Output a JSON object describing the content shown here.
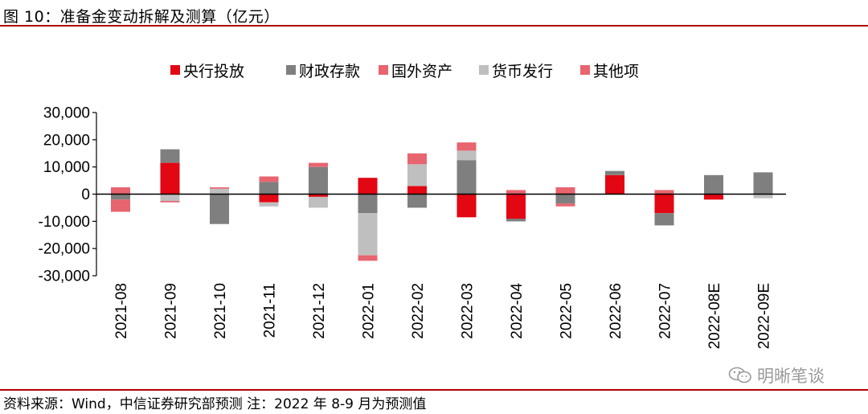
{
  "header": {
    "title": "图 10：准备金变动拆解及测算（亿元）"
  },
  "footer": {
    "source": "资料来源：Wind，中信证券研究部预测 注：2022 年 8-9 月为预测值"
  },
  "watermark": {
    "text": "明晰笔谈",
    "icon": "wechat-icon"
  },
  "colors": {
    "rule": "#b00000",
    "axis": "#000000"
  },
  "chart_data": {
    "type": "bar",
    "stacked": true,
    "categories": [
      "2021-08",
      "2021-09",
      "2021-10",
      "2021-11",
      "2021-12",
      "2022-01",
      "2022-02",
      "2022-03",
      "2022-04",
      "2022-05",
      "2022-06",
      "2022-07",
      "2022-08E",
      "2022-09E"
    ],
    "ylim": [
      -30000,
      30000
    ],
    "yticks": [
      -30000,
      -20000,
      -10000,
      0,
      10000,
      20000,
      30000
    ],
    "ytick_labels": [
      "-30,000",
      "-20,000",
      "-10,000",
      "0",
      "10,000",
      "20,000",
      "30,000"
    ],
    "legend_position": "top",
    "series": [
      {
        "name": "央行投放",
        "color": "#e30613",
        "values": [
          0,
          11500,
          0,
          -3000,
          -1000,
          6000,
          3000,
          -8500,
          -9000,
          0,
          7000,
          -7000,
          -2000,
          0
        ]
      },
      {
        "name": "财政存款",
        "color": "#7f7f7f",
        "values": [
          -2000,
          5000,
          -11000,
          4500,
          10000,
          -7000,
          -5000,
          12500,
          -1000,
          -3500,
          1500,
          -4500,
          7000,
          8000
        ]
      },
      {
        "name": "国外资产",
        "color": "#e8646f",
        "values": [
          2500,
          0,
          0,
          0,
          0,
          0,
          0,
          0,
          0,
          2500,
          0,
          0,
          0,
          0
        ]
      },
      {
        "name": "货币发行",
        "color": "#bfbfbf",
        "values": [
          0,
          -2500,
          2000,
          -1500,
          -4000,
          -15500,
          8000,
          3500,
          0,
          0,
          0,
          0,
          0,
          -1500
        ]
      },
      {
        "name": "其他项",
        "color": "#e8646f",
        "values": [
          -4500,
          -500,
          500,
          2000,
          1500,
          -2000,
          4000,
          3000,
          1500,
          -1000,
          0,
          1500,
          0,
          0
        ]
      }
    ]
  }
}
